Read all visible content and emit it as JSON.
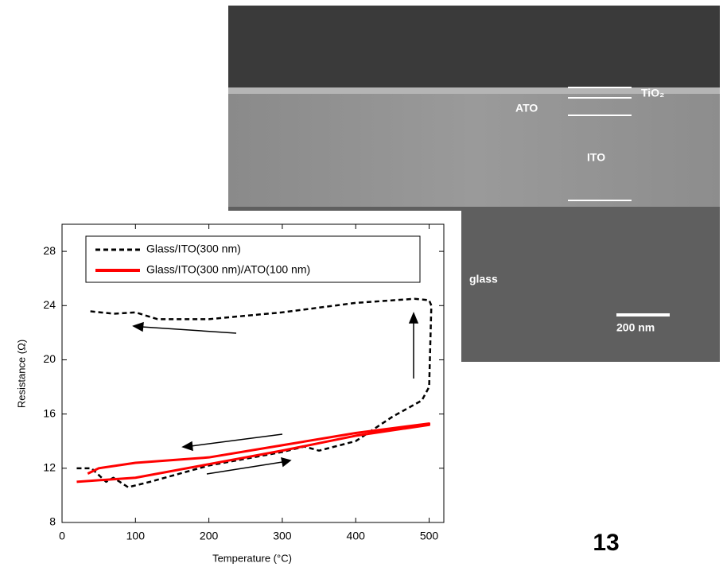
{
  "sem_labels": {
    "ato": "ATO",
    "tio2": "TiO₂",
    "ito": "ITO",
    "glass": "glass",
    "scale": "200 nm"
  },
  "page_number": "13",
  "chart_data": {
    "type": "line",
    "x_label": "Temperature (°C)",
    "y_label": "Resistance (Ω)",
    "xlim": [
      0,
      520
    ],
    "xticks": [
      0,
      100,
      200,
      300,
      400,
      500
    ],
    "ylim": [
      8,
      30
    ],
    "yticks": [
      8,
      12,
      16,
      20,
      24,
      28
    ],
    "legend": "top",
    "series": [
      {
        "name": "Glass/ITO(300 nm)",
        "color": "#000000",
        "dash": true,
        "x": [
          20,
          40,
          50,
          60,
          70,
          90,
          120,
          200,
          300,
          330,
          350,
          400,
          450,
          490,
          500,
          503,
          500,
          480,
          400,
          300,
          200,
          130,
          100,
          70,
          35
        ],
        "values": [
          12,
          12,
          11.5,
          11,
          11.3,
          10.6,
          11,
          12.2,
          13.2,
          13.6,
          13.3,
          14,
          15.8,
          17,
          18,
          24,
          24.4,
          24.5,
          24.2,
          23.5,
          23,
          23,
          23.5,
          23.4,
          23.6
        ]
      },
      {
        "name": "Glass/ITO(300 nm)/ATO(100 nm)",
        "color": "#ff0000",
        "dash": false,
        "x": [
          20,
          100,
          200,
          300,
          400,
          500,
          500,
          400,
          300,
          200,
          100,
          50,
          35
        ],
        "values": [
          11,
          11.3,
          12.3,
          13.3,
          14.4,
          15.2,
          15.3,
          14.6,
          13.7,
          12.8,
          12.4,
          12,
          11.6
        ]
      }
    ]
  }
}
